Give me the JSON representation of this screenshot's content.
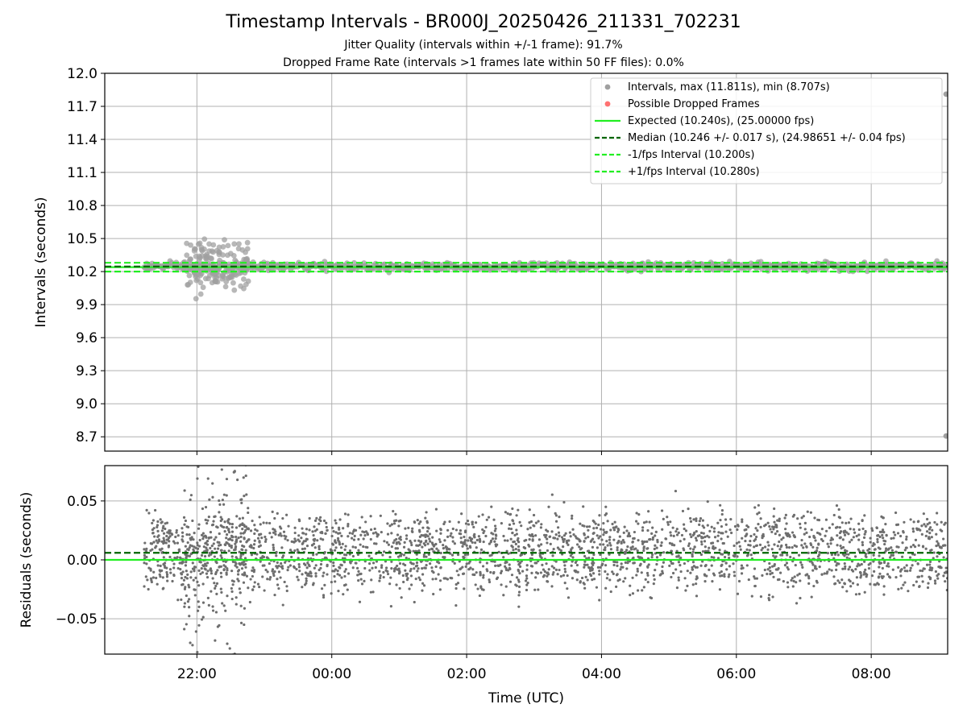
{
  "figure": {
    "title": "Timestamp Intervals - BR000J_20250426_211331_702231",
    "subtitle_1": "Jitter Quality (intervals within +/-1 frame): 91.7%",
    "subtitle_2": "Dropped Frame Rate (intervals >1 frames late within 50 FF files): 0.0%"
  },
  "colors": {
    "intervals": "#a0a0a0",
    "dropped": "#ff4d4d",
    "expected": "#22ee22",
    "median": "#006400",
    "fps_band": "#22ee22",
    "residuals": "#6e6e6e",
    "grid": "#b0b0b0"
  },
  "chart_data": [
    {
      "type": "scatter",
      "ylabel": "Intervals (seconds)",
      "xlabel": "",
      "ylim": [
        8.57,
        12.0
      ],
      "xlim": [
        "2025-04-26 20:38",
        "2025-04-27 09:08"
      ],
      "yticks": [
        "12.0",
        "11.7",
        "11.4",
        "11.1",
        "10.8",
        "10.5",
        "10.2",
        "9.9",
        "9.6",
        "9.3",
        "9.0",
        "8.7"
      ],
      "grid": true,
      "legend_position": "top-right",
      "series": [
        {
          "name": "Intervals, max (11.811s), min (8.707s)",
          "kind": "points",
          "start": "2025-04-26 21:13",
          "end": "2025-04-27 09:08",
          "center": 10.246,
          "spread": 0.017,
          "max": 11.811,
          "min": 8.707
        },
        {
          "name": "Possible Dropped Frames",
          "kind": "points",
          "values": []
        },
        {
          "name": "Expected (10.240s), (25.00000 fps)",
          "kind": "hline",
          "y": 10.24,
          "style": "solid"
        },
        {
          "name": "Median (10.246 +/- 0.017 s), (24.98651 +/- 0.04 fps)",
          "kind": "hline",
          "y": 10.246,
          "style": "dashed"
        },
        {
          "name": "-1/fps Interval (10.200s)",
          "kind": "hline",
          "y": 10.2,
          "style": "dashed"
        },
        {
          "name": "+1/fps Interval (10.280s)",
          "kind": "hline",
          "y": 10.28,
          "style": "dashed"
        }
      ]
    },
    {
      "type": "scatter",
      "ylabel": "Residuals (seconds)",
      "xlabel": "Time (UTC)",
      "ylim": [
        -0.08,
        0.08
      ],
      "yticks": [
        "0.05",
        "0.00",
        "−0.05"
      ],
      "xticks": [
        "22:00",
        "00:00",
        "02:00",
        "04:00",
        "06:00",
        "08:00"
      ],
      "grid": true,
      "series": [
        {
          "kind": "points",
          "start": "2025-04-26 21:13",
          "end": "2025-04-27 09:08",
          "center": 0.006
        },
        {
          "kind": "hline",
          "y": 0.0,
          "style": "solid"
        },
        {
          "kind": "hline",
          "y": 0.006,
          "style": "dashed"
        }
      ]
    }
  ]
}
